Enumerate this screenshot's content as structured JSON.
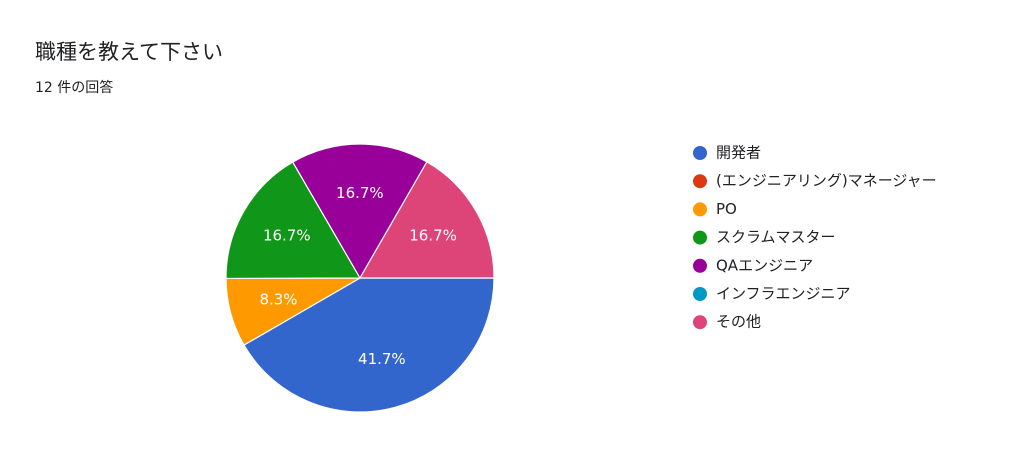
{
  "chart_data": {
    "type": "pie",
    "title": "職種を教えて下さい",
    "subtitle": "12 件の回答",
    "categories": [
      "開発者",
      "(エンジニアリング)マネージャー",
      "PO",
      "スクラムマスター",
      "QAエンジニア",
      "インフラエンジニア",
      "その他"
    ],
    "values": [
      41.7,
      0,
      8.3,
      16.7,
      16.7,
      0,
      16.7
    ],
    "value_labels": [
      "41.7%",
      null,
      "8.3%",
      "16.7%",
      "16.7%",
      null,
      "16.7%"
    ],
    "colors": [
      "#3366cc",
      "#dc3912",
      "#ff9900",
      "#109618",
      "#990099",
      "#0099c6",
      "#dd4477"
    ]
  }
}
